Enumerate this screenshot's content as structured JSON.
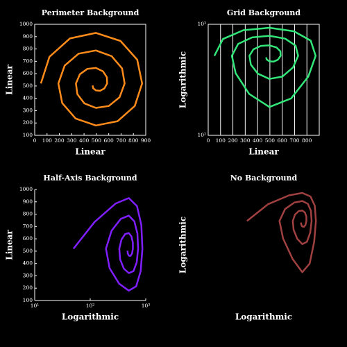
{
  "chart_data": [
    {
      "type": "line",
      "title": "Perimeter Background",
      "x_label": "Linear",
      "y_label": "Linear",
      "frame": "perimeter",
      "xlim": [
        0,
        900
      ],
      "ylim": [
        100,
        1000
      ],
      "xticks": [
        0,
        100,
        200,
        300,
        400,
        500,
        600,
        700,
        800,
        900
      ],
      "yticks": [
        100,
        200,
        300,
        400,
        500,
        600,
        700,
        800,
        900,
        1000
      ],
      "series": [
        {
          "color": "#ff8c1a",
          "x": [
            50,
            120,
            285,
            496,
            695,
            831,
            871,
            811,
            672,
            496,
            332,
            223,
            192,
            243,
            356,
            496,
            624,
            708,
            729,
            688,
            601,
            496,
            403,
            346,
            334,
            366,
            427,
            496,
            553,
            585,
            587,
            565,
            530,
            496,
            474,
            469
          ],
          "values": [
            520,
            737,
            885,
            930,
            865,
            713,
            520,
            338,
            215,
            180,
            236,
            362,
            520,
            666,
            762,
            788,
            742,
            642,
            520,
            409,
            338,
            322,
            359,
            433,
            520,
            595,
            639,
            646,
            619,
            571,
            520,
            480,
            461,
            464,
            482,
            504
          ]
        }
      ]
    },
    {
      "type": "line",
      "title": "Grid Background",
      "x_label": "Linear",
      "y_label": "Logarithmic",
      "frame": "grid",
      "ylog": true,
      "xlim": [
        0,
        900
      ],
      "ylim": [
        100,
        1000
      ],
      "xticks": [
        0,
        100,
        200,
        300,
        400,
        500,
        600,
        700,
        800
      ],
      "yticks": [
        {
          "value": 100,
          "label": "10²"
        },
        {
          "value": 1000,
          "label": "10³"
        }
      ],
      "series": [
        {
          "color": "#33e67a",
          "x": [
            50,
            120,
            285,
            496,
            695,
            831,
            871,
            811,
            672,
            496,
            332,
            223,
            192,
            243,
            356,
            496,
            624,
            708,
            729,
            688,
            601,
            496,
            403,
            346,
            334,
            366,
            427,
            496,
            553,
            585,
            587,
            565,
            530,
            496,
            474,
            469
          ],
          "values": [
            520,
            737,
            885,
            930,
            865,
            713,
            520,
            338,
            215,
            180,
            236,
            362,
            520,
            666,
            762,
            788,
            742,
            642,
            520,
            409,
            338,
            322,
            359,
            433,
            520,
            595,
            639,
            646,
            619,
            571,
            520,
            480,
            461,
            464,
            482,
            504
          ]
        }
      ]
    },
    {
      "type": "line",
      "title": "Half-Axis Background",
      "x_label": "Logarithmic",
      "y_label": "Linear",
      "frame": "half",
      "xlog": true,
      "xlim": [
        10,
        1000
      ],
      "ylim": [
        100,
        1000
      ],
      "xticks": [
        {
          "value": 10,
          "label": "10¹"
        },
        {
          "value": 100,
          "label": "10²"
        },
        {
          "value": 1000,
          "label": "10³"
        }
      ],
      "yticks": [
        100,
        200,
        300,
        400,
        500,
        600,
        700,
        800,
        900,
        1000
      ],
      "series": [
        {
          "color": "#7f1fff",
          "x": [
            50,
            120,
            285,
            496,
            695,
            831,
            871,
            811,
            672,
            496,
            332,
            223,
            192,
            243,
            356,
            496,
            624,
            708,
            729,
            688,
            601,
            496,
            403,
            346,
            334,
            366,
            427,
            496,
            553,
            585,
            587,
            565,
            530,
            496,
            474,
            469
          ],
          "values": [
            520,
            737,
            885,
            930,
            865,
            713,
            520,
            338,
            215,
            180,
            236,
            362,
            520,
            666,
            762,
            788,
            742,
            642,
            520,
            409,
            338,
            322,
            359,
            433,
            520,
            595,
            639,
            646,
            619,
            571,
            520,
            480,
            461,
            464,
            482,
            504
          ]
        }
      ]
    },
    {
      "type": "line",
      "title": "No Background",
      "x_label": "Logarithmic",
      "y_label": "Logarithmic",
      "frame": "none",
      "xlog": true,
      "ylog": true,
      "xlim": [
        10,
        1000
      ],
      "ylim": [
        100,
        1000
      ],
      "series": [
        {
          "color": "#a04040",
          "x": [
            50,
            120,
            285,
            496,
            695,
            831,
            871,
            811,
            672,
            496,
            332,
            223,
            192,
            243,
            356,
            496,
            624,
            708,
            729,
            688,
            601,
            496,
            403,
            346,
            334,
            366,
            427,
            496,
            553,
            585,
            587,
            565,
            530,
            496,
            474,
            469
          ],
          "values": [
            520,
            737,
            885,
            930,
            865,
            713,
            520,
            338,
            215,
            180,
            236,
            362,
            520,
            666,
            762,
            788,
            742,
            642,
            520,
            409,
            338,
            322,
            359,
            433,
            520,
            595,
            639,
            646,
            619,
            571,
            520,
            480,
            461,
            464,
            482,
            504
          ]
        }
      ]
    }
  ]
}
